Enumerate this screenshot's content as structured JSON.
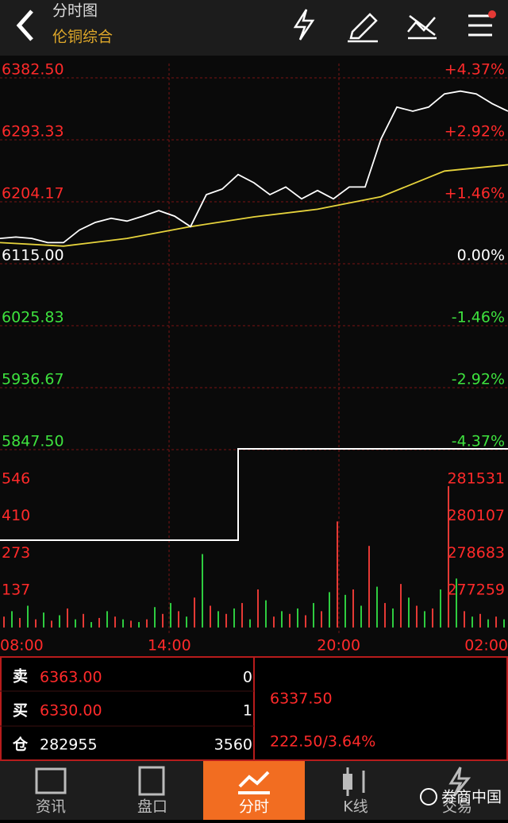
{
  "header": {
    "title": "分时图",
    "subtitle": "伦铜综合"
  },
  "chart": {
    "price_ticks": [
      {
        "value": 6382.5,
        "label": "6382.50"
      },
      {
        "value": 6293.33,
        "label": "6293.33"
      },
      {
        "value": 6204.17,
        "label": "6204.17"
      },
      {
        "value": 6115,
        "label": "6115.00"
      },
      {
        "value": 6025.83,
        "label": "6025.83"
      },
      {
        "value": 5936.67,
        "label": "5936.67"
      },
      {
        "value": 5847.5,
        "label": "5847.50"
      }
    ],
    "pct_ticks": [
      "+4.37%",
      "+2.92%",
      "+1.46%",
      "0.00%",
      "-1.46%",
      "-2.92%",
      "-4.37%"
    ],
    "volume_ticks": [
      546,
      410,
      273,
      137
    ],
    "oi_ticks": [
      281531,
      280107,
      278683,
      277259
    ],
    "times": [
      "08:00",
      "14:00",
      "20:00",
      "02:00"
    ],
    "price": [
      6140,
      6142,
      6140,
      6134,
      6134,
      6152,
      6163,
      6169,
      6165,
      6172,
      6180,
      6172,
      6157,
      6203,
      6211,
      6232,
      6220,
      6203,
      6214,
      6197,
      6209,
      6197,
      6214,
      6214,
      6283,
      6329,
      6323,
      6329,
      6348,
      6352,
      6348,
      6334,
      6323
    ],
    "avg": [
      6134,
      6129,
      6140,
      6157,
      6171,
      6182,
      6200,
      6237,
      6246
    ],
    "volume": [
      40,
      60,
      35,
      80,
      30,
      55,
      25,
      45,
      70,
      30,
      50,
      20,
      35,
      60,
      40,
      30,
      25,
      20,
      30,
      75,
      50,
      90,
      60,
      40,
      110,
      270,
      80,
      60,
      50,
      70,
      90,
      30,
      140,
      100,
      40,
      60,
      50,
      70,
      45,
      90,
      60,
      130,
      390,
      120,
      140,
      80,
      300,
      150,
      90,
      70,
      160,
      110,
      80,
      60,
      70,
      140,
      520,
      180,
      60,
      40,
      50,
      30,
      40,
      30
    ],
    "oi": [
      279181,
      279181,
      279181,
      279181,
      279181,
      279181,
      279181,
      279181,
      279181,
      279181,
      279181,
      279181,
      279181,
      279181,
      279181,
      282690,
      282690,
      282690,
      282690,
      282690,
      282690,
      282690,
      282690,
      282690,
      282690,
      282690,
      282690,
      282690,
      282690,
      282690,
      282690,
      282690,
      282690
    ]
  },
  "quote": {
    "sell_label": "卖",
    "sell_price": "6363.00",
    "sell_qty": "0",
    "buy_label": "买",
    "buy_price": "6330.00",
    "buy_qty": "1",
    "pos_label": "仓",
    "pos": "282955",
    "pos_change": "3560",
    "last": "6337.50",
    "change": "222.50/3.64%"
  },
  "tabs": [
    "资讯",
    "盘口",
    "分时",
    "K线",
    "交易"
  ],
  "watermark": "券商中国"
}
